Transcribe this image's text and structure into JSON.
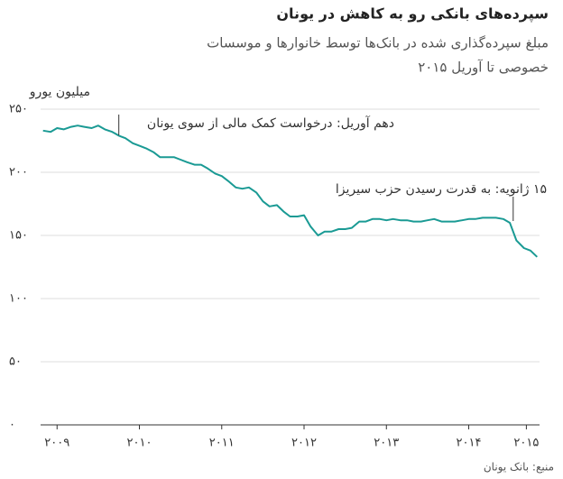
{
  "chart_data": {
    "type": "line",
    "title": "سپرده‌های بانکی رو به کاهش در یونان",
    "subtitle": [
      "مبلغ سپرده‌گذاری شده در بانک‌ها توسط خانوارها و موسسات",
      "خصوصی تا آوریل ۲۰۱۵"
    ],
    "y_label": "میلیون یورو",
    "source": "منبع: بانک یونان",
    "annotations": [
      {
        "text": "دهم آوریل: درخواست کمک مالی از سوی یونان",
        "x": 2010.25
      },
      {
        "text": "۱۵ ژانویه: به قدرت رسیدن حزب سیریزا",
        "x": 2015.04
      }
    ],
    "xlim": [
      2009.3,
      2015.36
    ],
    "xticks": [
      {
        "value": 2009.5,
        "label": "۲۰۰۹"
      },
      {
        "value": 2010.5,
        "label": "۲۰۱۰"
      },
      {
        "value": 2011.5,
        "label": "۲۰۱۱"
      },
      {
        "value": 2012.5,
        "label": "۲۰۱۲"
      },
      {
        "value": 2013.5,
        "label": "۲۰۱۳"
      },
      {
        "value": 2014.5,
        "label": "۲۰۱۴"
      },
      {
        "value": 2015.2,
        "label": "۲۰۱۵"
      }
    ],
    "ylim": [
      0,
      250
    ],
    "yticks": [
      {
        "value": 0,
        "label": "۰"
      },
      {
        "value": 50,
        "label": "۵۰"
      },
      {
        "value": 100,
        "label": "۱۰۰"
      },
      {
        "value": 150,
        "label": "۱۵۰"
      },
      {
        "value": 200,
        "label": "۲۰۰"
      },
      {
        "value": 250,
        "label": "۲۵۰"
      }
    ],
    "grid": true,
    "series": [
      {
        "color": "#1a9a94",
        "x": [
          2009.33,
          2009.42,
          2009.5,
          2009.58,
          2009.67,
          2009.75,
          2009.83,
          2009.92,
          2010.0,
          2010.08,
          2010.17,
          2010.25,
          2010.33,
          2010.42,
          2010.5,
          2010.58,
          2010.67,
          2010.75,
          2010.83,
          2010.92,
          2011.0,
          2011.08,
          2011.17,
          2011.25,
          2011.33,
          2011.42,
          2011.5,
          2011.58,
          2011.67,
          2011.75,
          2011.83,
          2011.92,
          2012.0,
          2012.08,
          2012.17,
          2012.25,
          2012.33,
          2012.42,
          2012.5,
          2012.58,
          2012.67,
          2012.75,
          2012.83,
          2012.92,
          2013.0,
          2013.08,
          2013.17,
          2013.25,
          2013.33,
          2013.42,
          2013.5,
          2013.58,
          2013.67,
          2013.75,
          2013.83,
          2013.92,
          2014.0,
          2014.08,
          2014.17,
          2014.25,
          2014.33,
          2014.42,
          2014.5,
          2014.58,
          2014.67,
          2014.75,
          2014.83,
          2014.92,
          2015.0,
          2015.08,
          2015.17,
          2015.25,
          2015.33
        ],
        "values": [
          233,
          232,
          235,
          234,
          236,
          237,
          236,
          235,
          237,
          234,
          232,
          229,
          227,
          223,
          221,
          219,
          216,
          212,
          212,
          212,
          210,
          208,
          206,
          206,
          203,
          199,
          197,
          193,
          188,
          187,
          188,
          184,
          177,
          173,
          174,
          169,
          165,
          165,
          166,
          157,
          150,
          153,
          153,
          155,
          155,
          156,
          161,
          161,
          163,
          163,
          162,
          163,
          162,
          162,
          161,
          161,
          162,
          163,
          161,
          161,
          161,
          162,
          163,
          163,
          164,
          164,
          164,
          163,
          160,
          146,
          140,
          138,
          133
        ]
      }
    ]
  }
}
